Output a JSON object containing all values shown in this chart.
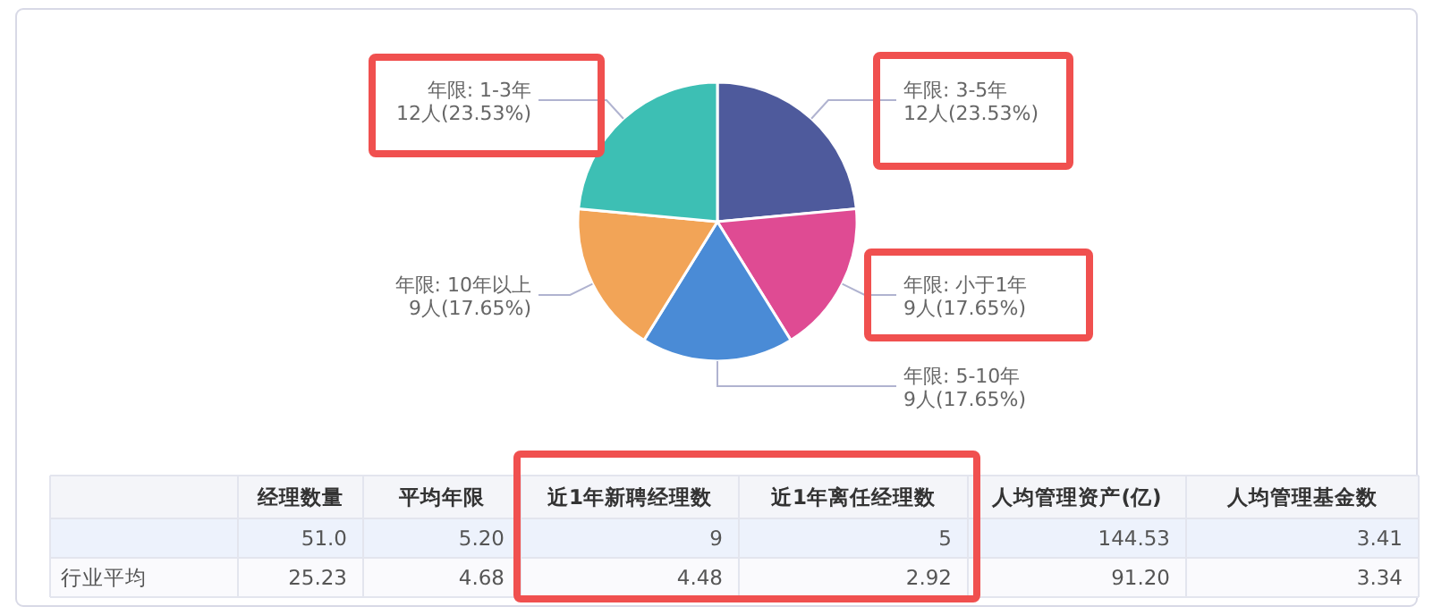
{
  "chart_data": [
    {
      "type": "pie",
      "categories": [
        "年限: 3-5年",
        "年限: 小于1年",
        "年限: 5-10年",
        "年限: 10年以上",
        "年限: 1-3年"
      ],
      "values": [
        12,
        9,
        9,
        9,
        12
      ],
      "colors": [
        "#4e5a9c",
        "#df4b93",
        "#4a8bd6",
        "#f2a457",
        "#3dbfb4"
      ],
      "value_labels": [
        "12人(23.53%)",
        "9人(17.65%)",
        "9人(17.65%)",
        "9人(17.65%)",
        "12人(23.53%)"
      ],
      "legend": false
    },
    {
      "type": "other",
      "categories": [
        "经理数量",
        "平均年限",
        "近1年新聘经理数",
        "近1年离任经理数",
        "人均管理资产(亿)",
        "人均管理基金数"
      ],
      "y_categories": [
        null,
        "行业平均"
      ],
      "cells": [
        [
          "51.0",
          "5.20",
          "9",
          "5",
          "144.53",
          "3.41"
        ],
        [
          "25.23",
          "4.68",
          "4.48",
          "2.92",
          "91.20",
          "3.34"
        ]
      ]
    }
  ]
}
